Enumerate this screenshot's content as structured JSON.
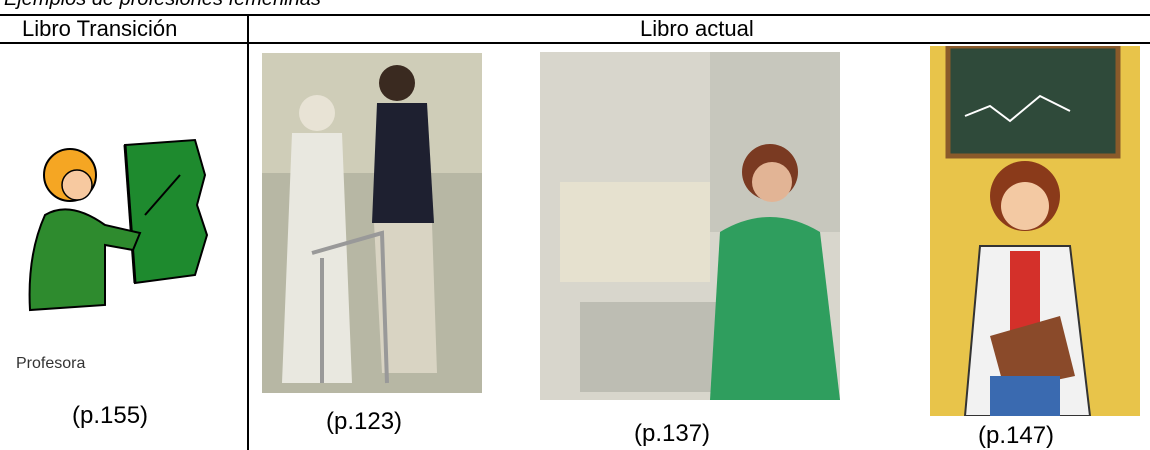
{
  "caption_top": "Ejemplos de profesiones femeninas",
  "table": {
    "headers": [
      "Libro Transición",
      "Libro actual"
    ],
    "left": {
      "label": "Profesora",
      "page": "(p.155)"
    },
    "right": [
      "(p.123)",
      "(p.137)",
      "(p.147)"
    ]
  }
}
